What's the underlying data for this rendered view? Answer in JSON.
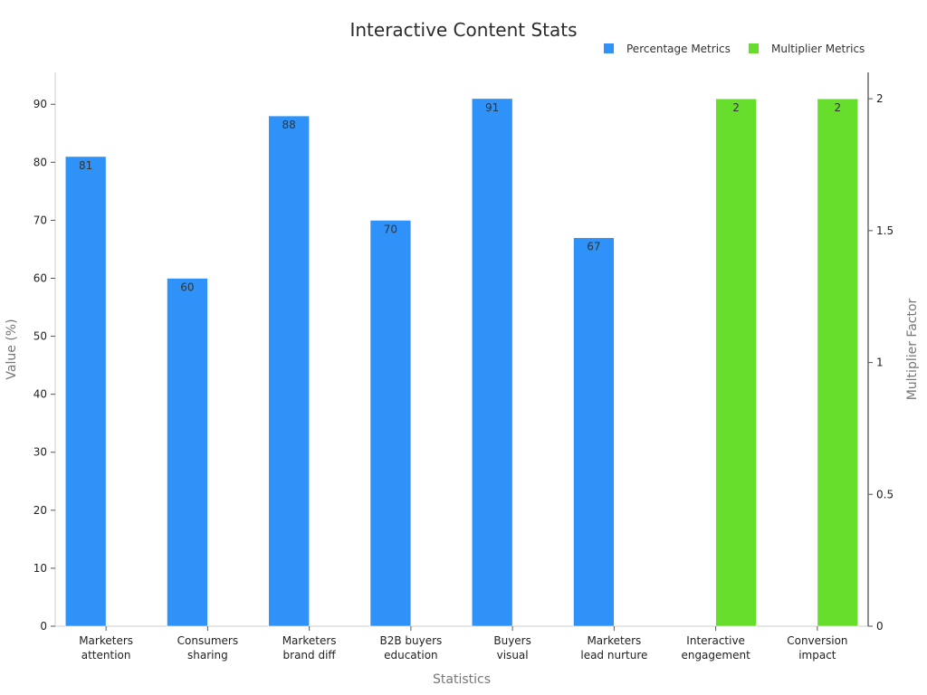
{
  "chart_data": {
    "type": "bar",
    "title": "Interactive Content Stats",
    "xlabel": "Statistics",
    "ylabel": "Value (%)",
    "y2label": "Multiplier Factor",
    "categories": [
      [
        "Marketers",
        "attention"
      ],
      [
        "Consumers",
        "sharing"
      ],
      [
        "Marketers",
        "brand diff"
      ],
      [
        "B2B buyers",
        "education"
      ],
      [
        "Buyers",
        "visual"
      ],
      [
        "Marketers",
        "lead nurture"
      ],
      [
        "Interactive",
        "engagement"
      ],
      [
        "Conversion",
        "impact"
      ]
    ],
    "ylim": [
      0,
      95.5
    ],
    "yticks": [
      0,
      10,
      20,
      30,
      40,
      50,
      60,
      70,
      80,
      90
    ],
    "y2lim": [
      0,
      2.1
    ],
    "y2ticks": [
      "0",
      "0.5",
      "1",
      "1.5",
      "2"
    ],
    "legend_position": "top-right",
    "series": [
      {
        "name": "Percentage Metrics",
        "axis": "left",
        "color": "#2f92f8",
        "values": [
          81,
          60,
          88,
          70,
          91,
          67,
          null,
          null
        ]
      },
      {
        "name": "Multiplier Metrics",
        "axis": "right",
        "color": "#66dd2a",
        "values": [
          null,
          null,
          null,
          null,
          null,
          null,
          2,
          2
        ]
      }
    ]
  }
}
